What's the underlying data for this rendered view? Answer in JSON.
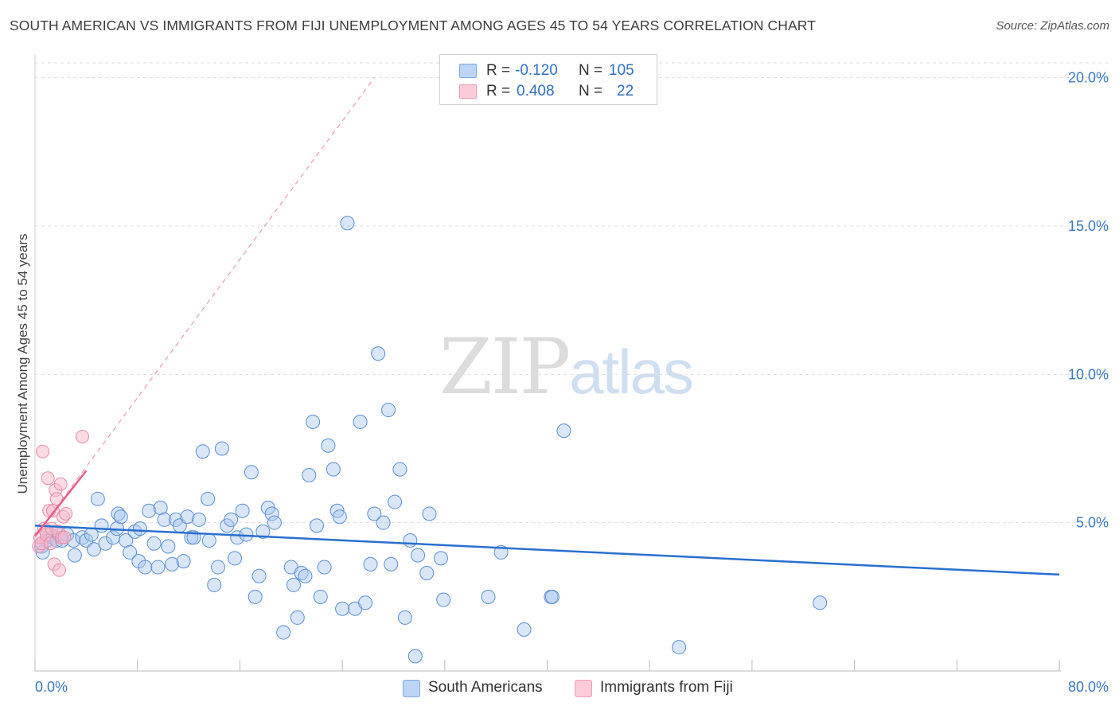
{
  "header": {
    "title": "SOUTH AMERICAN VS IMMIGRANTS FROM FIJI UNEMPLOYMENT AMONG AGES 45 TO 54 YEARS CORRELATION CHART",
    "source": "Source: ZipAtlas.com"
  },
  "watermark": {
    "zip": "ZIP",
    "atlas": "atlas"
  },
  "legend": {
    "rows": [
      {
        "r_label": "R =",
        "r_value": "-0.120",
        "n_label": "N =",
        "n_value": "105",
        "color": "#a9c8f0"
      },
      {
        "r_label": "R =",
        "r_value": "0.408",
        "n_label": "N =",
        "n_value": "22",
        "color": "#f7b9cb"
      }
    ]
  },
  "bottom_legend": {
    "south_americans": "South Americans",
    "fiji": "Immigrants from Fiji"
  },
  "axes": {
    "ylabel": "Unemployment Among Ages 45 to 54 years",
    "x_min_label": "0.0%",
    "x_max_label": "80.0%",
    "y_tick_labels": [
      "5.0%",
      "10.0%",
      "15.0%",
      "20.0%"
    ]
  },
  "colors": {
    "blue_fill": "#a9c8f0",
    "blue_stroke": "#5b8fd6",
    "blue_line": "#2a6fd0",
    "pink_fill": "#f7b9cb",
    "pink_stroke": "#e889a6",
    "pink_line": "#e8608c",
    "tick_text": "#3a78c2",
    "grid": "#dddddd"
  },
  "chart_data": {
    "type": "scatter",
    "title": "SOUTH AMERICAN VS IMMIGRANTS FROM FIJI UNEMPLOYMENT AMONG AGES 45 TO 54 YEARS CORRELATION CHART",
    "xlabel": "",
    "ylabel": "Unemployment Among Ages 45 to 54 years",
    "xlim": [
      0,
      80
    ],
    "ylim": [
      0,
      20.5
    ],
    "y_ticks": [
      5,
      10,
      15,
      20
    ],
    "x_ticks": [
      0,
      8,
      16,
      24,
      32,
      40,
      48,
      56,
      64,
      72,
      80
    ],
    "series": [
      {
        "name": "South Americans",
        "r": -0.12,
        "n": 105,
        "trend": {
          "x": [
            0,
            80
          ],
          "y": [
            4.9,
            3.25
          ]
        },
        "points": [
          [
            0.5,
            4.2
          ],
          [
            0.6,
            4.0
          ],
          [
            0.9,
            4.4
          ],
          [
            1.2,
            4.6
          ],
          [
            1.4,
            4.5
          ],
          [
            1.7,
            4.4
          ],
          [
            1.9,
            4.6
          ],
          [
            2.1,
            4.4
          ],
          [
            2.5,
            4.6
          ],
          [
            3.0,
            4.4
          ],
          [
            3.1,
            3.9
          ],
          [
            3.7,
            4.5
          ],
          [
            4.0,
            4.4
          ],
          [
            4.4,
            4.6
          ],
          [
            4.6,
            4.1
          ],
          [
            4.9,
            5.8
          ],
          [
            5.2,
            4.9
          ],
          [
            5.5,
            4.3
          ],
          [
            6.1,
            4.5
          ],
          [
            6.4,
            4.8
          ],
          [
            6.5,
            5.3
          ],
          [
            6.7,
            5.2
          ],
          [
            7.1,
            4.4
          ],
          [
            7.4,
            4.0
          ],
          [
            7.8,
            4.7
          ],
          [
            8.1,
            3.7
          ],
          [
            8.2,
            4.8
          ],
          [
            8.6,
            3.5
          ],
          [
            8.9,
            5.4
          ],
          [
            9.3,
            4.3
          ],
          [
            9.6,
            3.5
          ],
          [
            9.8,
            5.5
          ],
          [
            10.1,
            5.1
          ],
          [
            10.4,
            4.2
          ],
          [
            10.7,
            3.6
          ],
          [
            11.0,
            5.1
          ],
          [
            11.3,
            4.9
          ],
          [
            11.6,
            3.7
          ],
          [
            11.9,
            5.2
          ],
          [
            12.2,
            4.5
          ],
          [
            12.4,
            4.5
          ],
          [
            12.8,
            5.1
          ],
          [
            13.1,
            7.4
          ],
          [
            13.5,
            5.8
          ],
          [
            13.6,
            4.4
          ],
          [
            14.0,
            2.9
          ],
          [
            14.3,
            3.5
          ],
          [
            14.6,
            7.5
          ],
          [
            15.0,
            4.9
          ],
          [
            15.3,
            5.1
          ],
          [
            15.6,
            3.8
          ],
          [
            15.8,
            4.5
          ],
          [
            16.2,
            5.4
          ],
          [
            16.5,
            4.6
          ],
          [
            16.9,
            6.7
          ],
          [
            17.2,
            2.5
          ],
          [
            17.5,
            3.2
          ],
          [
            17.8,
            4.7
          ],
          [
            18.2,
            5.5
          ],
          [
            18.5,
            5.3
          ],
          [
            18.7,
            5.0
          ],
          [
            19.4,
            1.3
          ],
          [
            20.0,
            3.5
          ],
          [
            20.2,
            2.9
          ],
          [
            20.5,
            1.8
          ],
          [
            20.8,
            3.3
          ],
          [
            21.1,
            3.2
          ],
          [
            21.4,
            6.6
          ],
          [
            21.7,
            8.4
          ],
          [
            22.0,
            4.9
          ],
          [
            22.3,
            2.5
          ],
          [
            22.6,
            3.5
          ],
          [
            22.9,
            7.6
          ],
          [
            23.3,
            6.8
          ],
          [
            23.6,
            5.4
          ],
          [
            23.8,
            5.2
          ],
          [
            24.0,
            2.1
          ],
          [
            24.4,
            15.1
          ],
          [
            25.0,
            2.1
          ],
          [
            25.4,
            8.4
          ],
          [
            25.8,
            2.3
          ],
          [
            26.2,
            3.6
          ],
          [
            26.5,
            5.3
          ],
          [
            26.8,
            10.7
          ],
          [
            27.2,
            5.0
          ],
          [
            27.6,
            8.8
          ],
          [
            27.8,
            3.6
          ],
          [
            28.1,
            5.7
          ],
          [
            28.5,
            6.8
          ],
          [
            28.9,
            1.8
          ],
          [
            29.3,
            4.4
          ],
          [
            29.7,
            0.5
          ],
          [
            29.9,
            3.9
          ],
          [
            30.6,
            3.3
          ],
          [
            30.8,
            5.3
          ],
          [
            31.7,
            3.8
          ],
          [
            31.9,
            2.4
          ],
          [
            35.4,
            2.5
          ],
          [
            36.4,
            4.0
          ],
          [
            38.2,
            1.4
          ],
          [
            40.3,
            2.5
          ],
          [
            40.4,
            2.5
          ],
          [
            41.3,
            8.1
          ],
          [
            50.3,
            0.8
          ],
          [
            61.3,
            2.3
          ]
        ]
      },
      {
        "name": "Immigrants from Fiji",
        "r": 0.408,
        "n": 22,
        "trend": {
          "x": [
            0,
            4
          ],
          "y": [
            4.55,
            6.75
          ]
        },
        "trend_extended": {
          "x": [
            0,
            26.5
          ],
          "y": [
            4.55,
            20
          ]
        },
        "points": [
          [
            0.3,
            4.2
          ],
          [
            0.4,
            4.5
          ],
          [
            0.5,
            4.3
          ],
          [
            0.6,
            7.4
          ],
          [
            0.7,
            4.8
          ],
          [
            0.9,
            4.6
          ],
          [
            1.0,
            6.5
          ],
          [
            1.1,
            5.4
          ],
          [
            1.2,
            4.3
          ],
          [
            1.3,
            4.8
          ],
          [
            1.4,
            5.4
          ],
          [
            1.5,
            3.6
          ],
          [
            1.6,
            6.1
          ],
          [
            1.7,
            5.8
          ],
          [
            1.8,
            4.7
          ],
          [
            1.9,
            3.4
          ],
          [
            2.0,
            6.3
          ],
          [
            2.1,
            4.5
          ],
          [
            2.2,
            5.2
          ],
          [
            2.3,
            4.5
          ],
          [
            2.4,
            5.3
          ],
          [
            3.7,
            7.9
          ]
        ]
      }
    ]
  }
}
